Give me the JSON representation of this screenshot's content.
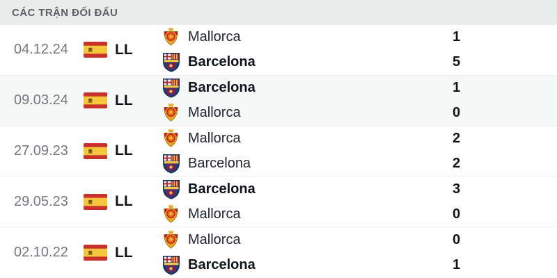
{
  "header": {
    "title": "CÁC TRẬN ĐỐI ĐẤU"
  },
  "league": {
    "code": "LL",
    "flag": "spain-flag-icon"
  },
  "colors": {
    "header_bg": "#eaebeb",
    "header_text": "#5d6165",
    "row_highlight_bg": "#f6f8f8",
    "separator": "#eeefef",
    "date_text": "#75787d",
    "dark_text": "#101419",
    "flag_red": "#c8322b",
    "flag_yellow": "#f6c73c",
    "mallorca_gold": "#e7a722",
    "mallorca_red": "#c01722",
    "barca_blue": "#1a4583",
    "barca_maroon": "#a2103c",
    "barca_yellow": "#f0c34a"
  },
  "matches": [
    {
      "date": "04.12.24",
      "league_code": "LL",
      "highlight": false,
      "teams": [
        {
          "name": "Mallorca",
          "crest": "mallorca-crest-icon",
          "score": "1",
          "winner": false
        },
        {
          "name": "Barcelona",
          "crest": "barcelona-crest-icon",
          "score": "5",
          "winner": true
        }
      ]
    },
    {
      "date": "09.03.24",
      "league_code": "LL",
      "highlight": true,
      "teams": [
        {
          "name": "Barcelona",
          "crest": "barcelona-crest-icon",
          "score": "1",
          "winner": true
        },
        {
          "name": "Mallorca",
          "crest": "mallorca-crest-icon",
          "score": "0",
          "winner": false
        }
      ]
    },
    {
      "date": "27.09.23",
      "league_code": "LL",
      "highlight": false,
      "teams": [
        {
          "name": "Mallorca",
          "crest": "mallorca-crest-icon",
          "score": "2",
          "winner": false
        },
        {
          "name": "Barcelona",
          "crest": "barcelona-crest-icon",
          "score": "2",
          "winner": false
        }
      ]
    },
    {
      "date": "29.05.23",
      "league_code": "LL",
      "highlight": false,
      "teams": [
        {
          "name": "Barcelona",
          "crest": "barcelona-crest-icon",
          "score": "3",
          "winner": true
        },
        {
          "name": "Mallorca",
          "crest": "mallorca-crest-icon",
          "score": "0",
          "winner": false
        }
      ]
    },
    {
      "date": "02.10.22",
      "league_code": "LL",
      "highlight": false,
      "teams": [
        {
          "name": "Mallorca",
          "crest": "mallorca-crest-icon",
          "score": "0",
          "winner": false
        },
        {
          "name": "Barcelona",
          "crest": "barcelona-crest-icon",
          "score": "1",
          "winner": true
        }
      ]
    }
  ]
}
